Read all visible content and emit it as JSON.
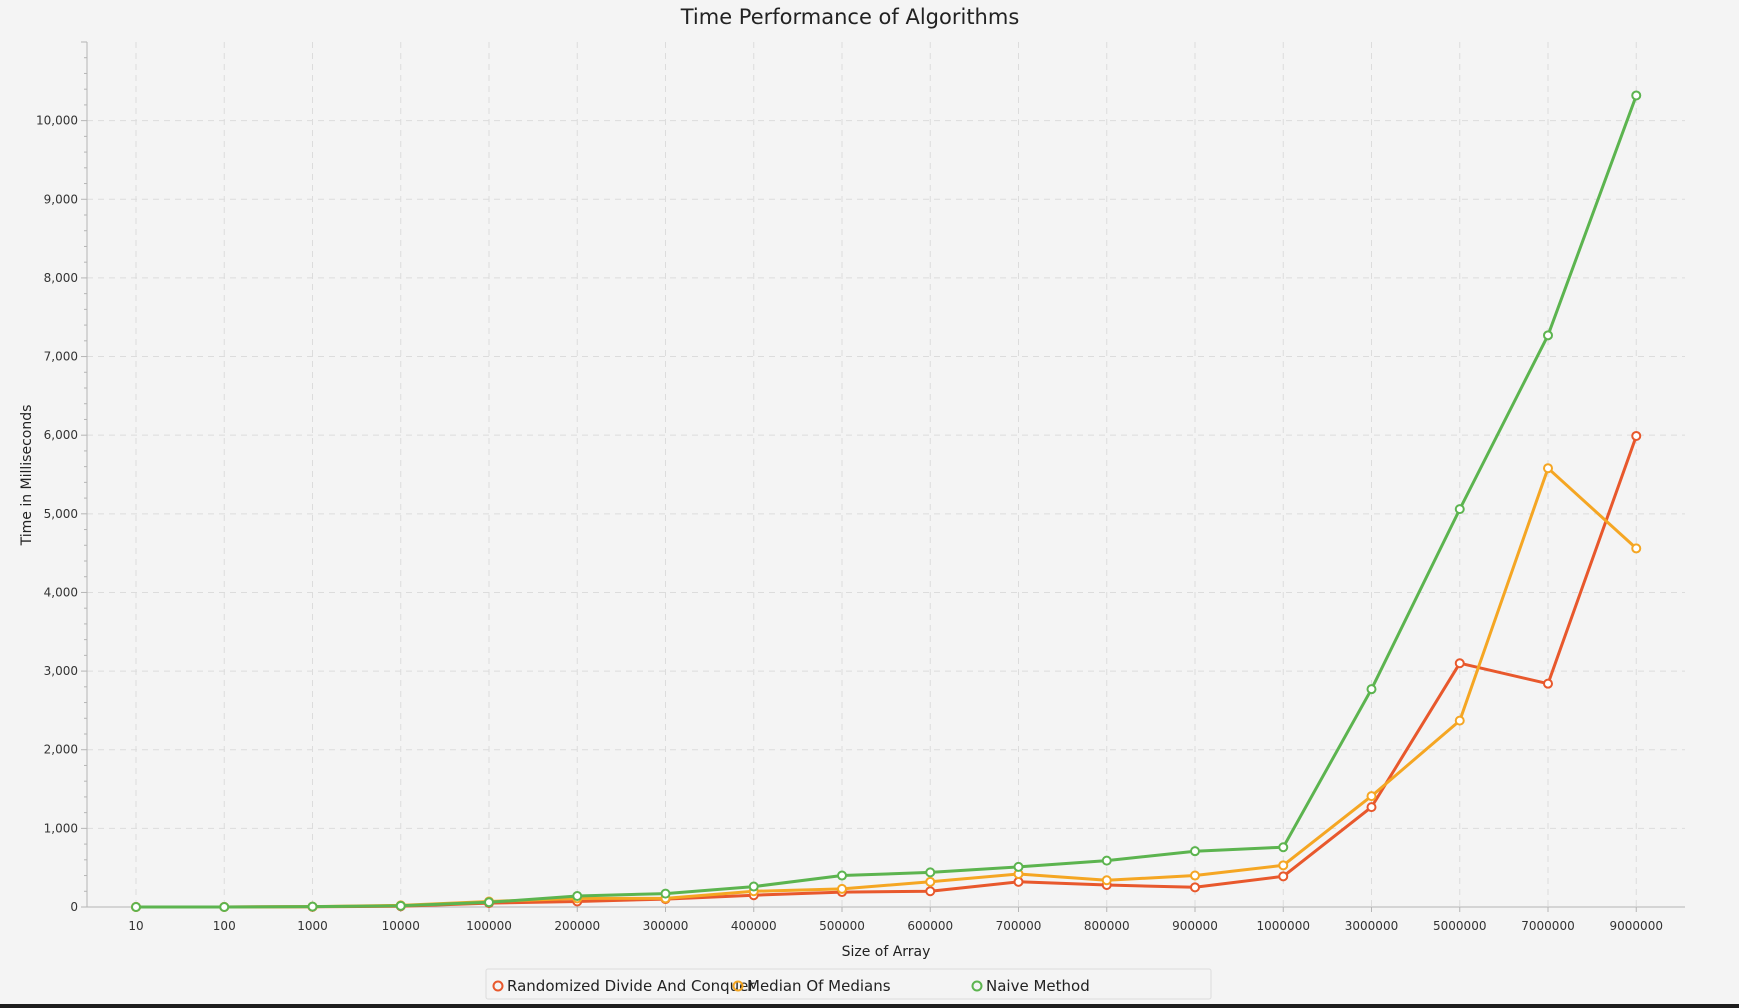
{
  "chart_data": {
    "type": "line",
    "title": "Time Performance of Algorithms",
    "xlabel": "Size of Array",
    "ylabel": "Time in Milliseconds",
    "categories": [
      "10",
      "100",
      "1000",
      "10000",
      "100000",
      "200000",
      "300000",
      "400000",
      "500000",
      "600000",
      "700000",
      "800000",
      "900000",
      "1000000",
      "3000000",
      "5000000",
      "7000000",
      "9000000"
    ],
    "ylim": [
      0,
      11000
    ],
    "yticks": [
      0,
      1000,
      2000,
      3000,
      4000,
      5000,
      6000,
      7000,
      8000,
      9000,
      10000
    ],
    "ytick_labels": [
      "0",
      "1,000",
      "2,000",
      "3,000",
      "4,000",
      "5,000",
      "6,000",
      "7,000",
      "8,000",
      "9,000",
      "10,000"
    ],
    "grid": true,
    "legend_position": "bottom-center",
    "series": [
      {
        "name": "Randomized Divide And Conquer",
        "color": "#e8582c",
        "values": [
          0,
          0,
          2,
          10,
          50,
          70,
          100,
          150,
          190,
          200,
          320,
          280,
          250,
          390,
          1270,
          3100,
          2840,
          5990
        ]
      },
      {
        "name": "Median Of Medians",
        "color": "#f5a623",
        "values": [
          0,
          0,
          5,
          20,
          70,
          110,
          110,
          200,
          230,
          320,
          420,
          340,
          400,
          530,
          1410,
          2370,
          5580,
          4560
        ]
      },
      {
        "name": "Naive Method",
        "color": "#5cb44f",
        "values": [
          0,
          0,
          5,
          15,
          60,
          140,
          170,
          260,
          400,
          440,
          510,
          590,
          710,
          760,
          2770,
          5060,
          7270,
          10320
        ]
      }
    ]
  }
}
